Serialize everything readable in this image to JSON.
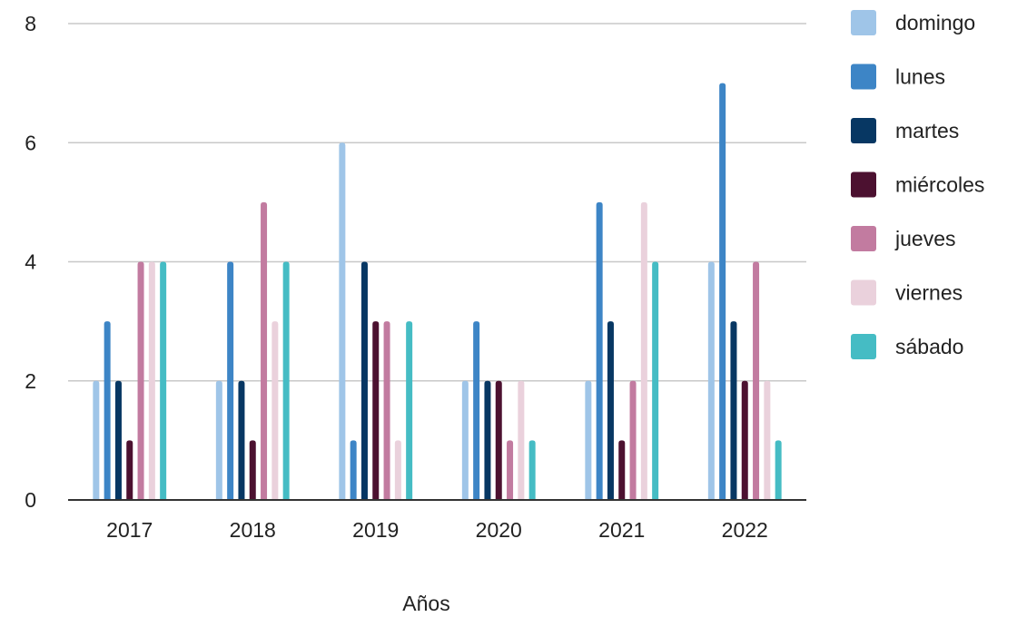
{
  "chart_data": {
    "type": "bar",
    "xlabel": "Años",
    "ylabel": "",
    "title": "",
    "categories": [
      "2017",
      "2018",
      "2019",
      "2020",
      "2021",
      "2022"
    ],
    "ylim": [
      0,
      8
    ],
    "yticks": [
      0,
      2,
      4,
      6,
      8
    ],
    "grid": true,
    "legend_position": "right",
    "series": [
      {
        "name": "domingo",
        "color": "#9fc5e8",
        "values": [
          2,
          2,
          6,
          2,
          2,
          4
        ]
      },
      {
        "name": "lunes",
        "color": "#3d85c6",
        "values": [
          3,
          4,
          1,
          3,
          5,
          7
        ]
      },
      {
        "name": "martes",
        "color": "#073763",
        "values": [
          2,
          2,
          4,
          2,
          3,
          3
        ]
      },
      {
        "name": "miércoles",
        "color": "#4c1130",
        "values": [
          1,
          1,
          3,
          2,
          1,
          2
        ]
      },
      {
        "name": "jueves",
        "color": "#c27ba0",
        "values": [
          4,
          5,
          3,
          1,
          2,
          4
        ]
      },
      {
        "name": "viernes",
        "color": "#ead1dc",
        "values": [
          4,
          3,
          1,
          2,
          5,
          2
        ]
      },
      {
        "name": "sábado",
        "color": "#45bcc4",
        "values": [
          4,
          4,
          3,
          1,
          4,
          1
        ]
      }
    ]
  }
}
